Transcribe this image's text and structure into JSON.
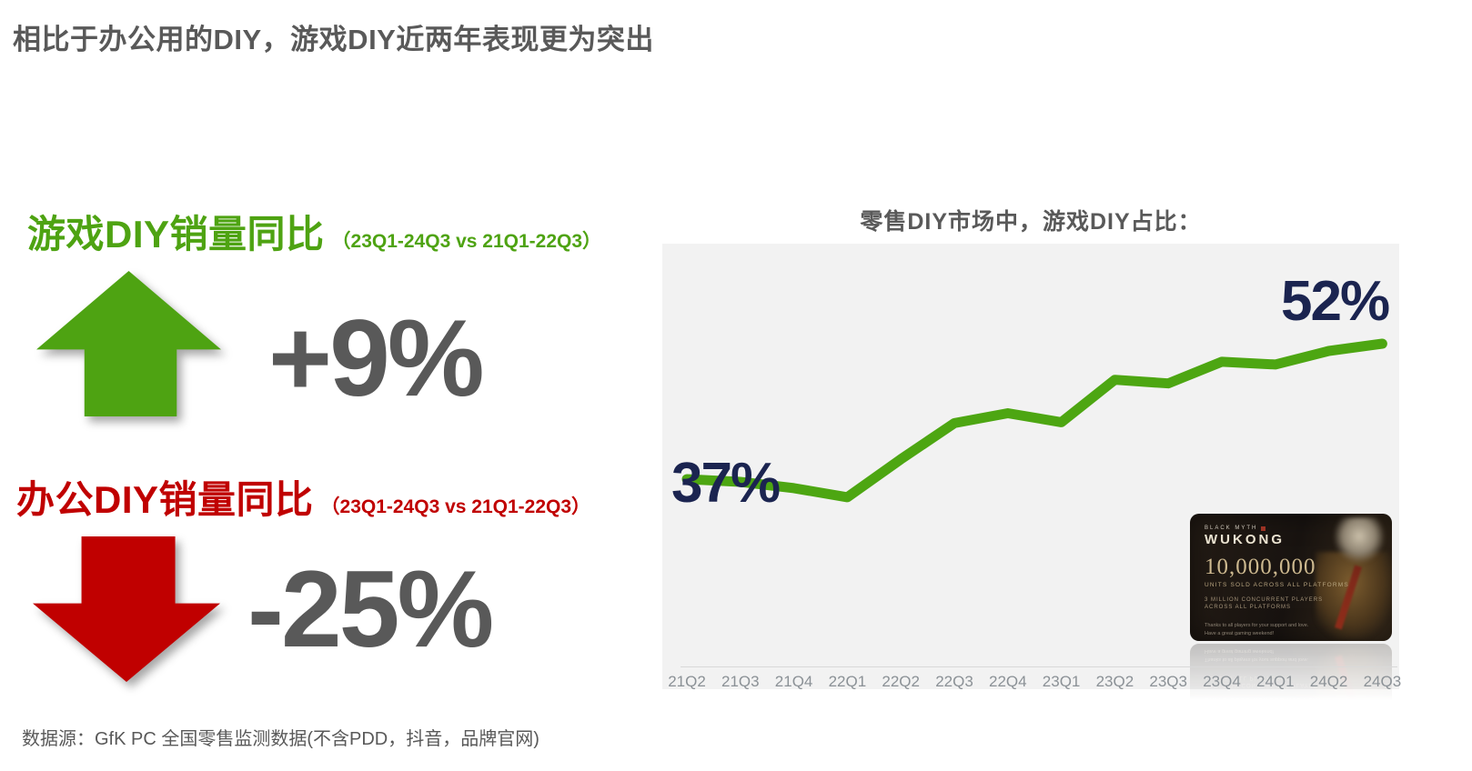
{
  "slide": {
    "title": "相比于办公用的DIY，游戏DIY近两年表现更为突出",
    "footer": "数据源：GfK PC 全国零售监测数据(不含PDD，抖音，品牌官网)"
  },
  "left_panel": {
    "value_color": "#595959",
    "gaming": {
      "label": "游戏DIY销量同比",
      "period": "（23Q1-24Q3 vs 21Q1-22Q3）",
      "value": "+9%",
      "direction": "up",
      "color": "#4EA312"
    },
    "office": {
      "label": "办公DIY销量同比",
      "period": "（23Q1-24Q3 vs 21Q1-22Q3）",
      "value": "-25%",
      "direction": "down",
      "color": "#C00000"
    }
  },
  "chart_data": {
    "type": "line",
    "title": "零售DIY市场中，游戏DIY占比：",
    "categories": [
      "21Q2",
      "21Q3",
      "21Q4",
      "22Q1",
      "22Q2",
      "22Q3",
      "22Q4",
      "23Q1",
      "23Q2",
      "23Q3",
      "23Q4",
      "24Q1",
      "24Q2",
      "24Q3"
    ],
    "series": [
      {
        "name": "游戏DIY占比",
        "values": [
          37,
          36.7,
          36,
          35,
          39.2,
          43.2,
          44.3,
          43.3,
          48,
          47.6,
          50,
          49.7,
          51.2,
          52
        ]
      }
    ],
    "unit": "%",
    "start_label": "37%",
    "end_label": "52%",
    "ylim": [
      33,
      56
    ],
    "grid": false,
    "legend": false,
    "line_color": "#4DA612",
    "data_label_color": "#1B2450",
    "panel_background": "#F2F2F2",
    "axis_label_color": "#8B9196"
  },
  "wukong_card": {
    "brand_small": "BLACK MYTH",
    "brand_large": "WUKONG",
    "headline": "10,000,000",
    "subline": "UNITS SOLD ACROSS ALL PLATFORMS",
    "stat_line1": "3 MILLION CONCURRENT PLAYERS",
    "stat_line2": "ACROSS ALL PLATFORMS",
    "note_line1": "Thanks to all players for your support and love.",
    "note_line2": "Have a great gaming weekend!"
  }
}
